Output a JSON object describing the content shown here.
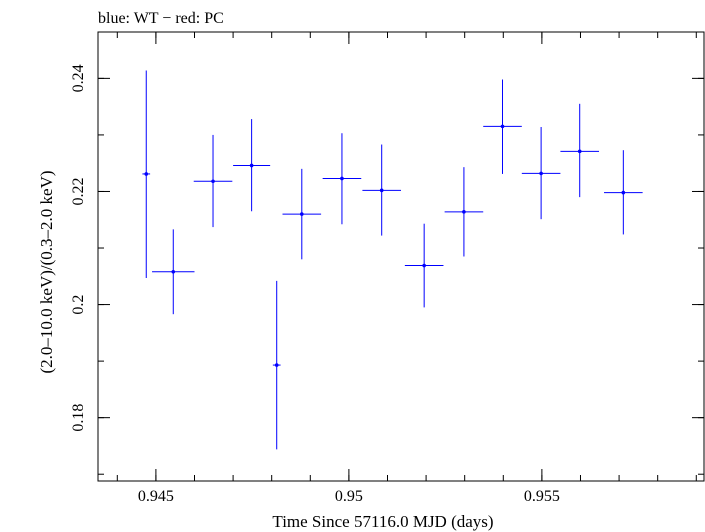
{
  "chart_data": {
    "type": "scatter",
    "title": "blue: WT − red: PC",
    "xlabel": "Time Since 57116.0 MJD (days)",
    "ylabel": "(2.0–10.0 keV)/(0.3–2.0 keV)",
    "xlim": [
      0.9435,
      0.9592
    ],
    "ylim": [
      0.1688,
      0.2482
    ],
    "x_ticks": [
      {
        "value": 0.945,
        "label": "0.945"
      },
      {
        "value": 0.95,
        "label": "0.95"
      },
      {
        "value": 0.955,
        "label": "0.955"
      }
    ],
    "y_ticks": [
      {
        "value": 0.18,
        "label": "0.18"
      },
      {
        "value": 0.2,
        "label": "0.2"
      },
      {
        "value": 0.22,
        "label": "0.22"
      },
      {
        "value": 0.24,
        "label": "0.24"
      }
    ],
    "x_minor_step": 0.001,
    "y_minor_step": 0.01,
    "grid": false,
    "series": [
      {
        "name": "WT",
        "color": "#0000ff",
        "points": [
          {
            "x": 0.94475,
            "y": 0.2231,
            "x_lo": 0.94465,
            "x_hi": 0.94485,
            "y_lo": 0.2047,
            "y_hi": 0.2414
          },
          {
            "x": 0.94545,
            "y": 0.2058,
            "x_lo": 0.9449,
            "x_hi": 0.946,
            "y_lo": 0.1983,
            "y_hi": 0.2133
          },
          {
            "x": 0.94648,
            "y": 0.2218,
            "x_lo": 0.94598,
            "x_hi": 0.94698,
            "y_lo": 0.2137,
            "y_hi": 0.23
          },
          {
            "x": 0.94748,
            "y": 0.2246,
            "x_lo": 0.947,
            "x_hi": 0.94796,
            "y_lo": 0.2165,
            "y_hi": 0.2328
          },
          {
            "x": 0.94813,
            "y": 0.1893,
            "x_lo": 0.94803,
            "x_hi": 0.94823,
            "y_lo": 0.1744,
            "y_hi": 0.2042
          },
          {
            "x": 0.94878,
            "y": 0.216,
            "x_lo": 0.94828,
            "x_hi": 0.94928,
            "y_lo": 0.208,
            "y_hi": 0.224
          },
          {
            "x": 0.94982,
            "y": 0.2223,
            "x_lo": 0.94932,
            "x_hi": 0.95032,
            "y_lo": 0.2142,
            "y_hi": 0.2303
          },
          {
            "x": 0.95085,
            "y": 0.2202,
            "x_lo": 0.95035,
            "x_hi": 0.95135,
            "y_lo": 0.2122,
            "y_hi": 0.2283
          },
          {
            "x": 0.95195,
            "y": 0.2069,
            "x_lo": 0.95145,
            "x_hi": 0.95245,
            "y_lo": 0.1995,
            "y_hi": 0.2143
          },
          {
            "x": 0.95298,
            "y": 0.2164,
            "x_lo": 0.95248,
            "x_hi": 0.95348,
            "y_lo": 0.2085,
            "y_hi": 0.2243
          },
          {
            "x": 0.95398,
            "y": 0.2315,
            "x_lo": 0.95348,
            "x_hi": 0.95448,
            "y_lo": 0.2231,
            "y_hi": 0.2398
          },
          {
            "x": 0.95498,
            "y": 0.2232,
            "x_lo": 0.95448,
            "x_hi": 0.95548,
            "y_lo": 0.2151,
            "y_hi": 0.2314
          },
          {
            "x": 0.95598,
            "y": 0.2271,
            "x_lo": 0.95548,
            "x_hi": 0.95648,
            "y_lo": 0.219,
            "y_hi": 0.2355
          },
          {
            "x": 0.95711,
            "y": 0.2198,
            "x_lo": 0.95661,
            "x_hi": 0.95761,
            "y_lo": 0.2124,
            "y_hi": 0.2273
          }
        ]
      }
    ]
  }
}
